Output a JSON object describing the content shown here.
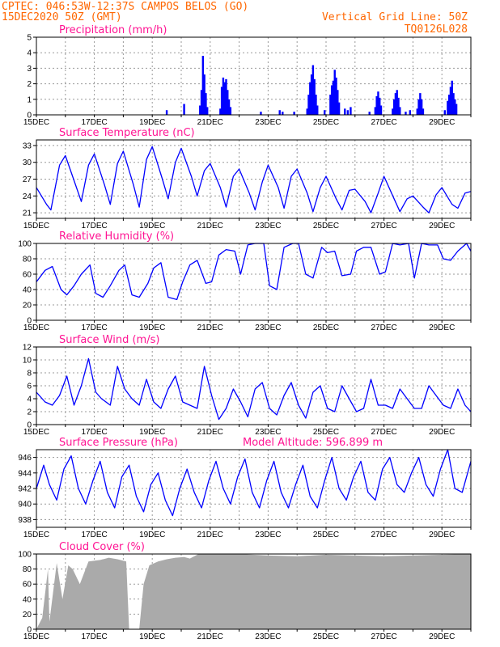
{
  "header": {
    "line1": "CPTEC:  046:53W-12:37S  CAMPOS BELOS (GO)",
    "line2": "15DEC2020 50Z (GMT)",
    "grid_note": "Vertical Grid Line: 50Z",
    "model_id": "TQ0126L028"
  },
  "date_labels": [
    "15DEC",
    "17DEC",
    "19DEC",
    "21DEC",
    "23DEC",
    "25DEC",
    "27DEC",
    "29DEC"
  ],
  "colors": {
    "header": "#ff6600",
    "title": "#ff1493",
    "series": "#0000ff",
    "cloud": "#aaaaaa"
  },
  "chart_data": [
    {
      "id": "precip",
      "type": "bar",
      "title": "Precipitation  (mm/h)",
      "ylim": [
        0,
        5
      ],
      "yticks": [
        0,
        1,
        2,
        3,
        4,
        5
      ],
      "xlim": [
        0,
        15
      ],
      "events": [
        {
          "x": 4.5,
          "y": 0.3
        },
        {
          "x": 5.1,
          "y": 0.7
        },
        {
          "x": 5.65,
          "y": 0.6
        },
        {
          "x": 5.7,
          "y": 1.6
        },
        {
          "x": 5.75,
          "y": 3.8
        },
        {
          "x": 5.8,
          "y": 2.6
        },
        {
          "x": 5.85,
          "y": 1.4
        },
        {
          "x": 5.9,
          "y": 0.5
        },
        {
          "x": 6.35,
          "y": 0.4
        },
        {
          "x": 6.4,
          "y": 1.8
        },
        {
          "x": 6.45,
          "y": 2.4
        },
        {
          "x": 6.5,
          "y": 2.1
        },
        {
          "x": 6.55,
          "y": 2.3
        },
        {
          "x": 6.6,
          "y": 1.6
        },
        {
          "x": 6.65,
          "y": 1.0
        },
        {
          "x": 6.7,
          "y": 0.5
        },
        {
          "x": 7.75,
          "y": 0.2
        },
        {
          "x": 8.4,
          "y": 0.3
        },
        {
          "x": 8.5,
          "y": 0.2
        },
        {
          "x": 8.9,
          "y": 0.2
        },
        {
          "x": 9.35,
          "y": 0.4
        },
        {
          "x": 9.4,
          "y": 1.3
        },
        {
          "x": 9.45,
          "y": 2.1
        },
        {
          "x": 9.5,
          "y": 2.6
        },
        {
          "x": 9.55,
          "y": 3.2
        },
        {
          "x": 9.6,
          "y": 2.3
        },
        {
          "x": 9.65,
          "y": 1.3
        },
        {
          "x": 9.7,
          "y": 0.6
        },
        {
          "x": 9.95,
          "y": 0.3
        },
        {
          "x": 10.15,
          "y": 1.3
        },
        {
          "x": 10.2,
          "y": 1.9
        },
        {
          "x": 10.25,
          "y": 2.2
        },
        {
          "x": 10.3,
          "y": 2.9
        },
        {
          "x": 10.35,
          "y": 2.4
        },
        {
          "x": 10.4,
          "y": 1.6
        },
        {
          "x": 10.45,
          "y": 0.8
        },
        {
          "x": 10.65,
          "y": 0.4
        },
        {
          "x": 10.75,
          "y": 0.3
        },
        {
          "x": 10.85,
          "y": 0.5
        },
        {
          "x": 11.5,
          "y": 0.2
        },
        {
          "x": 11.7,
          "y": 0.5
        },
        {
          "x": 11.75,
          "y": 1.2
        },
        {
          "x": 11.8,
          "y": 1.5
        },
        {
          "x": 11.85,
          "y": 1.1
        },
        {
          "x": 11.9,
          "y": 0.6
        },
        {
          "x": 12.3,
          "y": 0.4
        },
        {
          "x": 12.35,
          "y": 1.0
        },
        {
          "x": 12.4,
          "y": 1.4
        },
        {
          "x": 12.45,
          "y": 1.6
        },
        {
          "x": 12.5,
          "y": 1.1
        },
        {
          "x": 12.55,
          "y": 0.5
        },
        {
          "x": 12.75,
          "y": 0.2
        },
        {
          "x": 12.9,
          "y": 0.3
        },
        {
          "x": 13.15,
          "y": 0.4
        },
        {
          "x": 13.2,
          "y": 1.0
        },
        {
          "x": 13.25,
          "y": 1.4
        },
        {
          "x": 13.3,
          "y": 1.0
        },
        {
          "x": 13.35,
          "y": 0.4
        },
        {
          "x": 14.1,
          "y": 0.3
        },
        {
          "x": 14.2,
          "y": 0.9
        },
        {
          "x": 14.25,
          "y": 1.3
        },
        {
          "x": 14.3,
          "y": 1.8
        },
        {
          "x": 14.35,
          "y": 2.2
        },
        {
          "x": 14.4,
          "y": 1.4
        },
        {
          "x": 14.45,
          "y": 1.0
        },
        {
          "x": 14.5,
          "y": 0.7
        }
      ]
    },
    {
      "id": "temp",
      "type": "line",
      "title": "Surface Temperature (nC)",
      "ylim": [
        20,
        34
      ],
      "yticks": [
        21,
        24,
        27,
        30,
        33
      ],
      "xlim": [
        0,
        15
      ],
      "x": [
        0,
        0.35,
        0.5,
        0.8,
        1.0,
        1.35,
        1.55,
        1.8,
        2.0,
        2.35,
        2.55,
        2.8,
        3.0,
        3.35,
        3.55,
        3.8,
        4.0,
        4.35,
        4.55,
        4.8,
        5.0,
        5.35,
        5.55,
        5.8,
        6.0,
        6.35,
        6.55,
        6.8,
        7.0,
        7.35,
        7.55,
        7.8,
        8.0,
        8.35,
        8.55,
        8.8,
        9.0,
        9.35,
        9.55,
        9.8,
        10.0,
        10.35,
        10.55,
        10.8,
        11.0,
        11.35,
        11.55,
        11.8,
        12.0,
        12.35,
        12.55,
        12.8,
        13.0,
        13.35,
        13.55,
        13.8,
        14.0,
        14.35,
        14.55,
        14.8,
        15.0
      ],
      "y": [
        25.5,
        22.5,
        21.5,
        29.5,
        31.2,
        26.0,
        23.0,
        29.5,
        31.5,
        26.0,
        22.5,
        29.8,
        32.0,
        26.0,
        22.0,
        30.5,
        32.8,
        27.0,
        23.5,
        30.0,
        32.5,
        27.5,
        24.0,
        28.5,
        29.8,
        25.5,
        22.0,
        27.5,
        28.8,
        24.5,
        21.5,
        26.5,
        29.5,
        25.5,
        21.8,
        27.5,
        28.8,
        24.5,
        21.2,
        25.5,
        27.5,
        23.5,
        21.5,
        25.0,
        25.2,
        23.0,
        21.0,
        24.5,
        27.5,
        23.5,
        21.2,
        23.5,
        24.0,
        22.0,
        21.0,
        24.2,
        25.5,
        22.5,
        21.8,
        24.5,
        24.8
      ]
    },
    {
      "id": "rh",
      "type": "line",
      "title": "Relative Humidity (%)",
      "ylim": [
        0,
        100
      ],
      "yticks": [
        0,
        20,
        40,
        60,
        80,
        100
      ],
      "xlim": [
        0,
        15
      ],
      "x": [
        0,
        0.3,
        0.55,
        0.85,
        1.05,
        1.3,
        1.55,
        1.85,
        2.05,
        2.3,
        2.55,
        2.85,
        3.05,
        3.3,
        3.55,
        3.85,
        4.05,
        4.3,
        4.55,
        4.85,
        5.05,
        5.3,
        5.55,
        5.85,
        6.05,
        6.3,
        6.55,
        6.85,
        7.05,
        7.3,
        7.55,
        7.85,
        8.05,
        8.3,
        8.55,
        8.85,
        9.05,
        9.3,
        9.55,
        9.85,
        10.05,
        10.3,
        10.55,
        10.85,
        11.05,
        11.3,
        11.55,
        11.85,
        12.05,
        12.3,
        12.55,
        12.85,
        13.05,
        13.3,
        13.55,
        13.85,
        14.05,
        14.3,
        14.55,
        14.85,
        15.0
      ],
      "y": [
        50,
        65,
        70,
        40,
        33,
        45,
        60,
        72,
        35,
        30,
        45,
        65,
        72,
        33,
        30,
        48,
        68,
        75,
        30,
        27,
        50,
        72,
        78,
        48,
        50,
        85,
        92,
        90,
        60,
        98,
        100,
        100,
        45,
        40,
        95,
        100,
        100,
        60,
        55,
        95,
        88,
        90,
        58,
        60,
        90,
        95,
        95,
        60,
        63,
        100,
        98,
        100,
        55,
        100,
        98,
        98,
        80,
        78,
        90,
        100,
        90
      ]
    },
    {
      "id": "wind",
      "type": "line",
      "title": "Surface Wind (m/s)",
      "ylim": [
        0,
        12
      ],
      "yticks": [
        0,
        2,
        4,
        6,
        8,
        10,
        12
      ],
      "xlim": [
        0,
        15
      ],
      "x": [
        0,
        0.3,
        0.55,
        0.8,
        1.05,
        1.3,
        1.55,
        1.8,
        2.05,
        2.25,
        2.55,
        2.8,
        3.05,
        3.3,
        3.55,
        3.8,
        4.05,
        4.3,
        4.55,
        4.8,
        5.05,
        5.3,
        5.55,
        5.8,
        6.05,
        6.3,
        6.55,
        6.8,
        7.05,
        7.3,
        7.55,
        7.8,
        8.05,
        8.3,
        8.55,
        8.8,
        9.05,
        9.3,
        9.55,
        9.8,
        10.05,
        10.3,
        10.55,
        10.8,
        11.05,
        11.3,
        11.55,
        11.8,
        12.05,
        12.3,
        12.55,
        12.8,
        13.05,
        13.3,
        13.55,
        13.8,
        14.05,
        14.3,
        14.55,
        14.8,
        15.0
      ],
      "y": [
        5.0,
        3.5,
        3.0,
        4.5,
        7.5,
        3.0,
        6.0,
        10.2,
        5.0,
        4.0,
        3.0,
        9.0,
        5.5,
        4.0,
        3.0,
        7.0,
        3.5,
        2.5,
        5.5,
        7.5,
        3.5,
        3.0,
        2.5,
        9.0,
        4.5,
        0.8,
        2.5,
        5.5,
        3.5,
        1.2,
        5.5,
        6.5,
        2.5,
        1.5,
        4.5,
        6.5,
        3.0,
        1.0,
        5.0,
        6.0,
        2.5,
        2.0,
        6.0,
        4.0,
        2.0,
        2.5,
        7.0,
        3.0,
        3.0,
        2.5,
        5.5,
        4.0,
        2.5,
        2.5,
        6.0,
        4.5,
        3.0,
        2.5,
        5.5,
        3.0,
        2.0
      ]
    },
    {
      "id": "press",
      "type": "line",
      "title": "Surface Pressure (hPa)",
      "subtitle": "Model Altitude: 596.899  m",
      "ylim": [
        937,
        947
      ],
      "yticks": [
        938,
        940,
        942,
        944,
        946
      ],
      "xlim": [
        0,
        15
      ],
      "x": [
        0,
        0.25,
        0.45,
        0.7,
        0.95,
        1.2,
        1.45,
        1.7,
        1.95,
        2.2,
        2.45,
        2.7,
        2.95,
        3.2,
        3.45,
        3.7,
        3.95,
        4.2,
        4.45,
        4.7,
        4.95,
        5.2,
        5.45,
        5.7,
        5.95,
        6.2,
        6.45,
        6.7,
        6.95,
        7.2,
        7.45,
        7.7,
        7.95,
        8.2,
        8.45,
        8.7,
        8.95,
        9.2,
        9.45,
        9.7,
        9.95,
        10.2,
        10.45,
        10.7,
        10.95,
        11.2,
        11.45,
        11.7,
        11.95,
        12.2,
        12.45,
        12.7,
        12.95,
        13.2,
        13.45,
        13.7,
        13.95,
        14.2,
        14.45,
        14.7,
        15.0
      ],
      "y": [
        942.0,
        945.0,
        942.5,
        940.5,
        944.5,
        946.2,
        942.0,
        940.0,
        943.0,
        945.5,
        941.5,
        939.5,
        943.5,
        945.0,
        941.0,
        939.0,
        942.5,
        944.0,
        940.5,
        938.5,
        942.0,
        944.5,
        941.5,
        939.5,
        943.0,
        945.5,
        942.0,
        940.0,
        943.5,
        945.8,
        941.5,
        939.5,
        943.0,
        945.5,
        941.5,
        939.5,
        942.5,
        945.0,
        941.0,
        939.5,
        943.0,
        946.0,
        942.0,
        940.5,
        943.5,
        945.5,
        941.5,
        940.5,
        944.5,
        946.0,
        942.5,
        941.5,
        944.0,
        946.0,
        942.5,
        941.0,
        944.5,
        947.0,
        942.0,
        941.5,
        945.5
      ]
    },
    {
      "id": "cloud",
      "type": "area",
      "title": "Cloud Cover (%)",
      "ylim": [
        0,
        100
      ],
      "yticks": [
        0,
        20,
        40,
        60,
        80,
        100
      ],
      "xlim": [
        0,
        15
      ],
      "x": [
        0,
        0.2,
        0.4,
        0.45,
        0.7,
        0.9,
        1.1,
        1.25,
        1.5,
        1.8,
        2.2,
        2.5,
        2.8,
        3.1,
        3.2,
        3.3,
        3.55,
        3.7,
        3.9,
        4.2,
        4.5,
        4.8,
        5.1,
        5.3,
        5.6,
        6.0,
        7.0,
        8.0,
        9.0,
        10.0,
        11.0,
        12.0,
        13.0,
        14.0,
        15.0
      ],
      "y": [
        0,
        15,
        80,
        10,
        88,
        40,
        85,
        80,
        60,
        90,
        92,
        95,
        93,
        90,
        0,
        0,
        0,
        60,
        85,
        90,
        93,
        95,
        96,
        94,
        100,
        100,
        100,
        98,
        97,
        99,
        98,
        97,
        98,
        99,
        100
      ]
    }
  ]
}
